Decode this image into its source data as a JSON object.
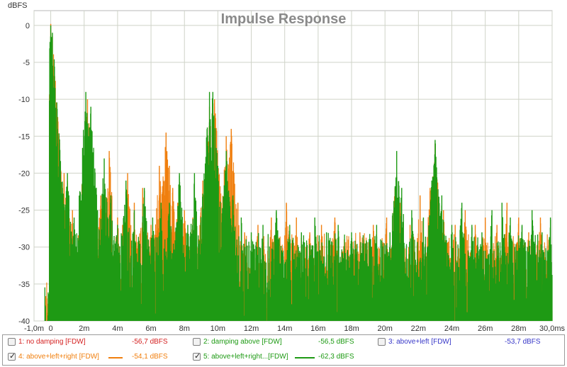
{
  "chart_data": {
    "type": "line",
    "title": "Impulse Response",
    "ylabel": "dBFS",
    "xlabel": "",
    "xlim": [
      -1.0,
      30.0
    ],
    "ylim": [
      -40,
      2
    ],
    "x_ticks": [
      {
        "v": -1.0,
        "label": "-1,0m"
      },
      {
        "v": 0,
        "label": "0"
      },
      {
        "v": 2,
        "label": "2m"
      },
      {
        "v": 4,
        "label": "4m"
      },
      {
        "v": 6,
        "label": "6m"
      },
      {
        "v": 8,
        "label": "8m"
      },
      {
        "v": 10,
        "label": "10m"
      },
      {
        "v": 12,
        "label": "12m"
      },
      {
        "v": 14,
        "label": "14m"
      },
      {
        "v": 16,
        "label": "16m"
      },
      {
        "v": 18,
        "label": "18m"
      },
      {
        "v": 20,
        "label": "20m"
      },
      {
        "v": 22,
        "label": "22m"
      },
      {
        "v": 24,
        "label": "24m"
      },
      {
        "v": 26,
        "label": "26m"
      },
      {
        "v": 28,
        "label": "28m"
      },
      {
        "v": 30,
        "label": "30,0ms"
      }
    ],
    "y_ticks": [
      0,
      -5,
      -10,
      -15,
      -20,
      -25,
      -30,
      -35,
      -40
    ],
    "grid": true,
    "series": [
      {
        "name": "above+left+right [FDW]",
        "color": "#f07f0e",
        "visible": true,
        "peaks": [
          [
            -0.05,
            -33
          ],
          [
            0.0,
            0.2
          ],
          [
            0.1,
            -1.5
          ],
          [
            0.3,
            -13
          ],
          [
            0.5,
            -15
          ],
          [
            0.8,
            -20
          ],
          [
            1.0,
            -21
          ],
          [
            1.3,
            -25
          ],
          [
            2.2,
            -10
          ],
          [
            2.5,
            -21
          ],
          [
            3.0,
            -23
          ],
          [
            3.5,
            -17
          ],
          [
            4.0,
            -26
          ],
          [
            4.3,
            -27
          ],
          [
            4.6,
            -20
          ],
          [
            5.0,
            -24
          ],
          [
            5.5,
            -22
          ],
          [
            6.0,
            -27
          ],
          [
            6.5,
            -19
          ],
          [
            6.8,
            -23
          ],
          [
            6.9,
            -14.5
          ],
          [
            7.1,
            -19
          ],
          [
            7.3,
            -22
          ],
          [
            7.6,
            -24
          ],
          [
            8.0,
            -25
          ],
          [
            8.5,
            -26
          ],
          [
            9.1,
            -21
          ],
          [
            9.5,
            -11
          ],
          [
            9.8,
            -10
          ],
          [
            10.2,
            -24
          ],
          [
            10.5,
            -15
          ],
          [
            10.8,
            -14
          ],
          [
            11.2,
            -24
          ],
          [
            11.6,
            -28
          ],
          [
            12.4,
            -27
          ],
          [
            13.2,
            -26
          ],
          [
            14.1,
            -24
          ],
          [
            14.7,
            -26
          ],
          [
            15.5,
            -28
          ],
          [
            16.2,
            -27
          ],
          [
            17.0,
            -26
          ],
          [
            17.8,
            -29
          ],
          [
            18.5,
            -28
          ],
          [
            19.3,
            -27
          ],
          [
            20.1,
            -26
          ],
          [
            20.6,
            -22
          ],
          [
            20.9,
            -24
          ],
          [
            21.5,
            -27
          ],
          [
            22.1,
            -23
          ],
          [
            22.7,
            -22
          ],
          [
            23.0,
            -16
          ],
          [
            23.5,
            -25
          ],
          [
            24.2,
            -27
          ],
          [
            24.8,
            -25
          ],
          [
            25.4,
            -27
          ],
          [
            26.0,
            -26
          ],
          [
            26.7,
            -27
          ],
          [
            27.3,
            -24
          ],
          [
            28.0,
            -26
          ],
          [
            28.6,
            -28
          ],
          [
            29.3,
            -26
          ],
          [
            29.8,
            -29
          ]
        ]
      },
      {
        "name": "above+left+right...[FDW]",
        "color": "#1e9a14",
        "visible": true,
        "peaks": [
          [
            -0.05,
            -36
          ],
          [
            0.0,
            0.0
          ],
          [
            0.1,
            -1.0
          ],
          [
            0.25,
            -11
          ],
          [
            0.4,
            -14
          ],
          [
            0.7,
            -22
          ],
          [
            1.0,
            -20
          ],
          [
            1.4,
            -26
          ],
          [
            2.1,
            -9
          ],
          [
            2.4,
            -11
          ],
          [
            2.8,
            -25
          ],
          [
            3.2,
            -18
          ],
          [
            3.6,
            -23
          ],
          [
            4.0,
            -27
          ],
          [
            4.5,
            -21
          ],
          [
            5.0,
            -25
          ],
          [
            5.6,
            -22
          ],
          [
            6.1,
            -26
          ],
          [
            6.6,
            -24
          ],
          [
            7.1,
            -24
          ],
          [
            7.7,
            -20
          ],
          [
            8.2,
            -27
          ],
          [
            8.6,
            -20
          ],
          [
            9.2,
            -22
          ],
          [
            9.5,
            -9
          ],
          [
            9.7,
            -9
          ],
          [
            10.0,
            -22
          ],
          [
            10.5,
            -17
          ],
          [
            10.9,
            -23
          ],
          [
            11.4,
            -26
          ],
          [
            12.0,
            -28
          ],
          [
            12.7,
            -27
          ],
          [
            13.5,
            -25
          ],
          [
            14.3,
            -27
          ],
          [
            15.0,
            -28
          ],
          [
            15.8,
            -26
          ],
          [
            16.5,
            -28
          ],
          [
            17.2,
            -27
          ],
          [
            18.0,
            -28
          ],
          [
            18.7,
            -29
          ],
          [
            19.5,
            -27
          ],
          [
            20.3,
            -28
          ],
          [
            20.7,
            -17
          ],
          [
            21.0,
            -22
          ],
          [
            21.6,
            -25
          ],
          [
            22.3,
            -26
          ],
          [
            22.8,
            -21
          ],
          [
            23.0,
            -15.5
          ],
          [
            23.4,
            -23
          ],
          [
            24.0,
            -27
          ],
          [
            24.6,
            -24
          ],
          [
            25.2,
            -27
          ],
          [
            25.8,
            -28
          ],
          [
            26.4,
            -25
          ],
          [
            27.0,
            -24
          ],
          [
            27.5,
            -26
          ],
          [
            28.2,
            -27
          ],
          [
            28.8,
            -25
          ],
          [
            29.4,
            -28
          ],
          [
            29.9,
            -26
          ]
        ]
      }
    ]
  },
  "legend": [
    {
      "label": "1: no damping [FDW]",
      "value": "-56,7 dBFS",
      "checked": false,
      "color": "#d42020",
      "line": false
    },
    {
      "label": "2: damping above [FDW]",
      "value": "-56,5 dBFS",
      "checked": false,
      "color": "#1e9a14",
      "line": false
    },
    {
      "label": "3: above+left [FDW]",
      "value": "-53,7 dBFS",
      "checked": false,
      "color": "#3737c8",
      "line": false
    },
    {
      "label": "4: above+left+right [FDW]",
      "value": "-54,1 dBFS",
      "checked": true,
      "color": "#f07f0e",
      "line": true
    },
    {
      "label": "5: above+left+right...[FDW]",
      "value": "-62,3 dBFS",
      "checked": true,
      "color": "#1e9a14",
      "line": true
    }
  ],
  "colors": {
    "grid": "#cfd3c8",
    "axis": "#888888",
    "background": "#ffffff"
  }
}
